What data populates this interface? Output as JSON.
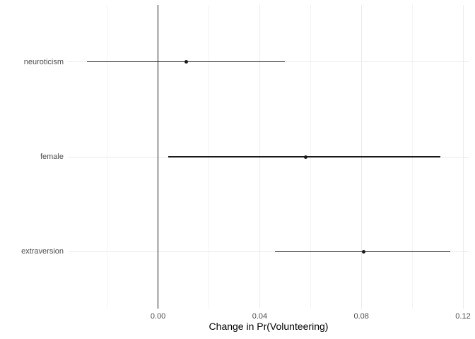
{
  "chart_data": {
    "type": "dot-whisker",
    "title": "",
    "xlabel": "Change in Pr(Volunteering)",
    "ylabel": "",
    "xlim": [
      -0.0355,
      0.1225
    ],
    "x_ticks": [
      0,
      0.04,
      0.08,
      0.12
    ],
    "x_tick_labels": [
      "0.00",
      "0.04",
      "0.08",
      "0.12"
    ],
    "x_minor_ticks": [
      -0.02,
      0.02,
      0.06,
      0.1
    ],
    "reference_line_x": 0,
    "grid": "major-and-minor",
    "legend_position": "none",
    "categories": [
      "neuroticism",
      "female",
      "extraversion"
    ],
    "series": [
      {
        "term": "neuroticism",
        "estimate": 0.011,
        "ci_lower": -0.028,
        "ci_upper": 0.05
      },
      {
        "term": "female",
        "estimate": 0.058,
        "ci_lower": 0.004,
        "ci_upper": 0.111
      },
      {
        "term": "extraversion",
        "estimate": 0.081,
        "ci_lower": 0.046,
        "ci_upper": 0.115
      }
    ],
    "colors": {
      "point": "#1a1a1a",
      "whisker": "#1a1a1a",
      "reference_line": "#1a1a1a",
      "grid_major": "#ebebeb",
      "grid_minor": "#f3f3f3",
      "tick_label": "#4d4d4d",
      "axis_title": "#000000",
      "background": "#ffffff"
    }
  }
}
